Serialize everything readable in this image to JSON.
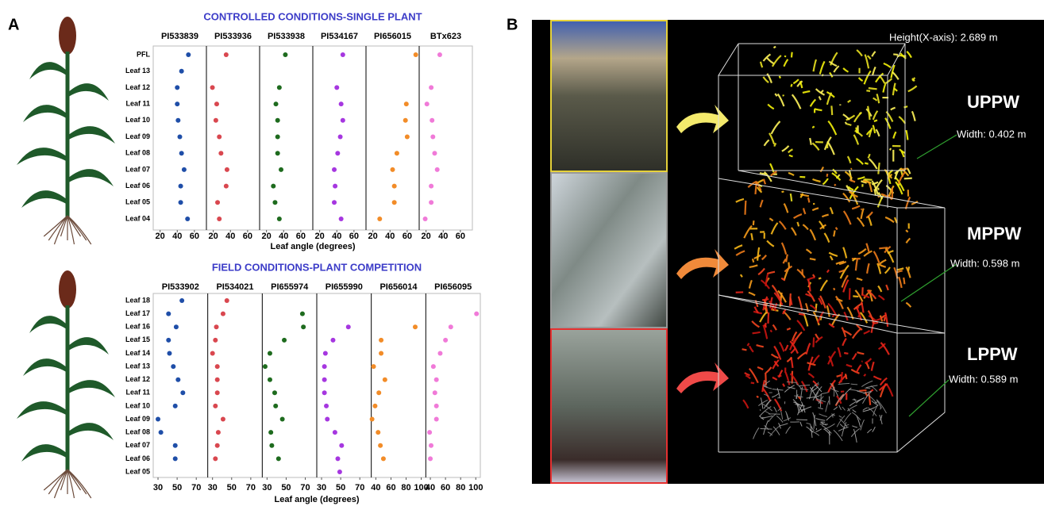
{
  "panel_labels": [
    "A",
    "B"
  ],
  "chart_data": [
    {
      "type": "dot",
      "title": "CONTROLLED CONDITIONS-SINGLE PLANT",
      "xlabel": "Leaf angle (degrees)",
      "categories": [
        "PFL",
        "Leaf 13",
        "Leaf 12",
        "Leaf 11",
        "Leaf 10",
        "Leaf 09",
        "Leaf 08",
        "Leaf 07",
        "Leaf 06",
        "Leaf 05",
        "Leaf 04"
      ],
      "series": [
        {
          "name": "PI533839",
          "color": "#1f4ea8",
          "xlim": [
            12,
            74
          ],
          "xticks": [
            20,
            40,
            60
          ],
          "values": [
            53,
            45,
            40,
            40,
            41,
            43,
            45,
            48,
            44,
            44,
            52
          ]
        },
        {
          "name": "PI533936",
          "color": "#d9474f",
          "xlim": [
            12,
            74
          ],
          "xticks": [
            20,
            40,
            60
          ],
          "values": [
            35,
            null,
            19,
            24,
            23,
            27,
            29,
            36,
            35,
            25,
            27
          ]
        },
        {
          "name": "PI533938",
          "color": "#1e6b1e",
          "xlim": [
            12,
            74
          ],
          "xticks": [
            20,
            40,
            60
          ],
          "values": [
            42,
            null,
            35,
            31,
            33,
            33,
            33,
            37,
            28,
            30,
            35
          ]
        },
        {
          "name": "PI534167",
          "color": "#a637e0",
          "xlim": [
            12,
            74
          ],
          "xticks": [
            20,
            40,
            60
          ],
          "values": [
            47,
            null,
            40,
            45,
            47,
            44,
            41,
            37,
            38,
            37,
            45
          ]
        },
        {
          "name": "PI656015",
          "color": "#f28c28",
          "xlim": [
            12,
            74
          ],
          "xticks": [
            20,
            40,
            60
          ],
          "values": [
            70,
            null,
            null,
            59,
            58,
            60,
            48,
            43,
            45,
            45,
            28
          ]
        },
        {
          "name": "BTx623",
          "color": "#f07ad8",
          "xlim": [
            12,
            74
          ],
          "xticks": [
            20,
            40,
            60
          ],
          "values": [
            36,
            null,
            26,
            21,
            27,
            28,
            30,
            33,
            26,
            26,
            19
          ]
        }
      ]
    },
    {
      "type": "dot",
      "title": "FIELD CONDITIONS-PLANT COMPETITION",
      "xlabel": "Leaf angle (degrees)",
      "categories": [
        "Leaf 18",
        "Leaf 17",
        "Leaf 16",
        "Leaf 15",
        "Leaf 14",
        "Leaf 13",
        "Leaf 12",
        "Leaf 11",
        "Leaf 10",
        "Leaf 09",
        "Leaf 08",
        "Leaf 07",
        "Leaf 06",
        "Leaf 05"
      ],
      "series": [
        {
          "name": "PI533902",
          "color": "#1f4ea8",
          "xlim": [
            25,
            82
          ],
          "xticks": [
            30,
            50,
            70
          ],
          "values": [
            55,
            41,
            49,
            41,
            42,
            46,
            51,
            56,
            48,
            30,
            33,
            48,
            48,
            null
          ]
        },
        {
          "name": "PI534021",
          "color": "#d9474f",
          "xlim": [
            25,
            82
          ],
          "xticks": [
            30,
            50,
            70
          ],
          "values": [
            45,
            41,
            34,
            33,
            30,
            35,
            35,
            35,
            33,
            41,
            36,
            35,
            33,
            null
          ]
        },
        {
          "name": "PI655974",
          "color": "#1e6b1e",
          "xlim": [
            25,
            82
          ],
          "xticks": [
            30,
            50,
            70
          ],
          "values": [
            null,
            67,
            68,
            48,
            33,
            28,
            33,
            38,
            39,
            46,
            34,
            35,
            42,
            null
          ]
        },
        {
          "name": "PI655990",
          "color": "#a637e0",
          "xlim": [
            25,
            82
          ],
          "xticks": [
            30,
            50,
            70
          ],
          "values": [
            null,
            null,
            58,
            42,
            34,
            33,
            33,
            33,
            35,
            36,
            44,
            51,
            47,
            49
          ]
        },
        {
          "name": "PI656014",
          "color": "#f28c28",
          "xlim": [
            34,
            106
          ],
          "xticks": [
            40,
            60,
            80,
            100
          ],
          "values": [
            null,
            null,
            92,
            47,
            47,
            37,
            52,
            44,
            39,
            35,
            43,
            46,
            50,
            null
          ]
        },
        {
          "name": "PI656095",
          "color": "#f07ad8",
          "xlim": [
            34,
            106
          ],
          "xticks": [
            40,
            60,
            80,
            100
          ],
          "values": [
            null,
            101,
            67,
            60,
            53,
            44,
            48,
            46,
            48,
            48,
            39,
            41,
            40,
            null
          ]
        }
      ]
    }
  ],
  "panel_b": {
    "height_label": "Height(X-axis): 2.689 m",
    "layers": [
      {
        "name": "UPPW",
        "width_label": "Width: 0.402 m"
      },
      {
        "name": "MPPW",
        "width_label": "Width: 0.598 m"
      },
      {
        "name": "LPPW",
        "width_label": "Width: 0.589 m"
      }
    ]
  }
}
